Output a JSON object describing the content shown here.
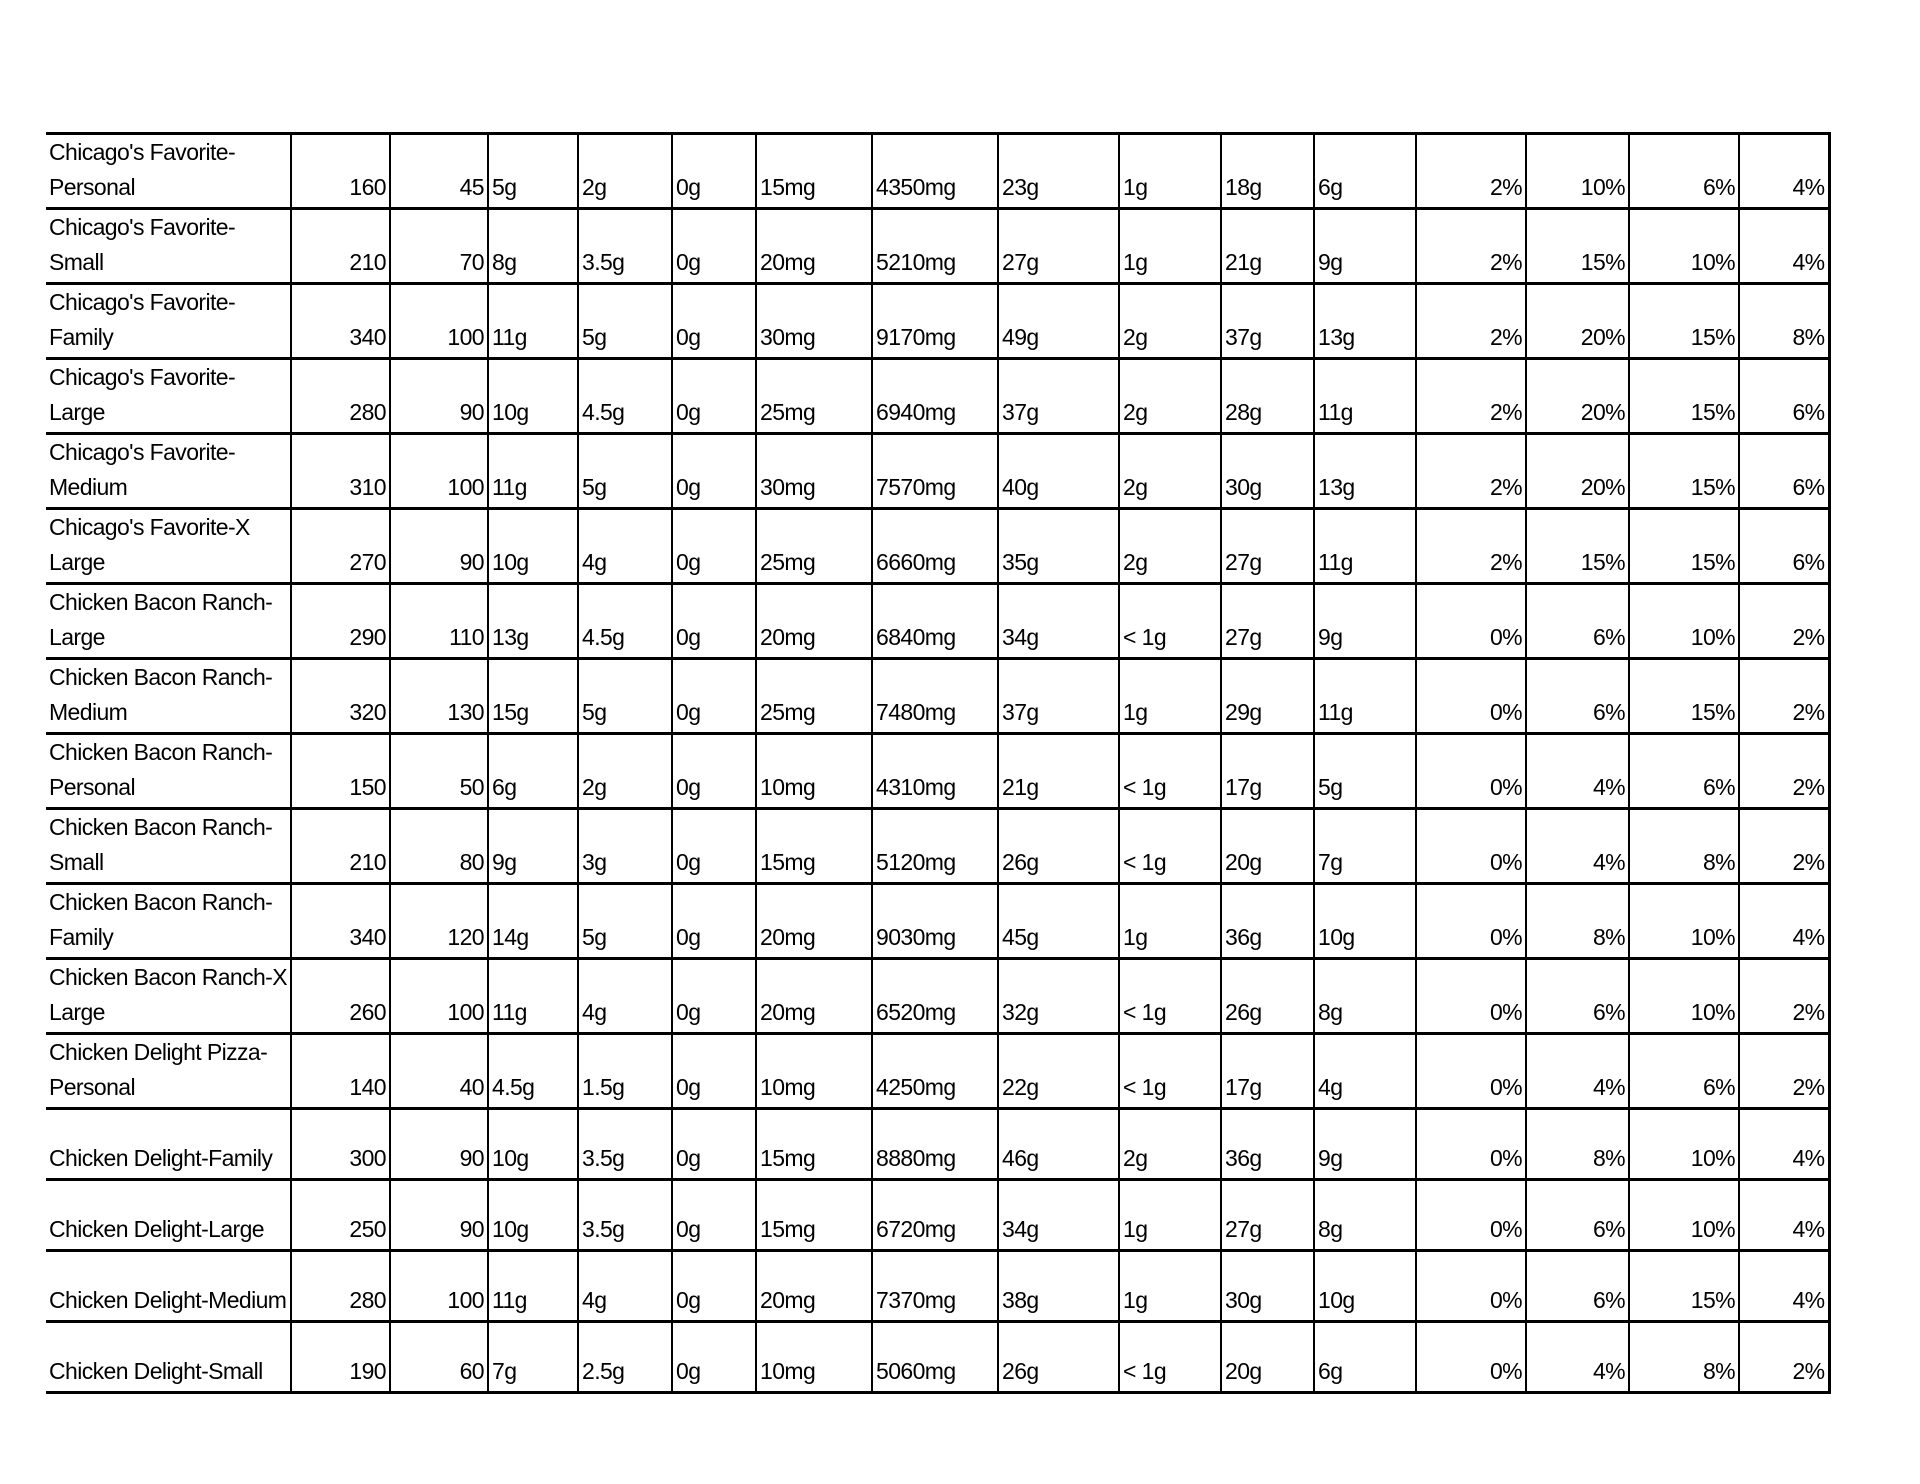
{
  "table": {
    "rows": [
      [
        "Chicago's Favorite-Personal",
        "160",
        "45",
        "5g",
        "2g",
        "0g",
        "15mg",
        "4350mg",
        "23g",
        "1g",
        "18g",
        "6g",
        "2%",
        "10%",
        "6%",
        "4%"
      ],
      [
        "Chicago's Favorite-Small",
        "210",
        "70",
        "8g",
        "3.5g",
        "0g",
        "20mg",
        "5210mg",
        "27g",
        "1g",
        "21g",
        "9g",
        "2%",
        "15%",
        "10%",
        "4%"
      ],
      [
        "Chicago's Favorite-Family",
        "340",
        "100",
        "11g",
        "5g",
        "0g",
        "30mg",
        "9170mg",
        "49g",
        "2g",
        "37g",
        "13g",
        "2%",
        "20%",
        "15%",
        "8%"
      ],
      [
        "Chicago's Favorite-Large",
        "280",
        "90",
        "10g",
        "4.5g",
        "0g",
        "25mg",
        "6940mg",
        "37g",
        "2g",
        "28g",
        "11g",
        "2%",
        "20%",
        "15%",
        "6%"
      ],
      [
        "Chicago's Favorite-Medium",
        "310",
        "100",
        "11g",
        "5g",
        "0g",
        "30mg",
        "7570mg",
        "40g",
        "2g",
        "30g",
        "13g",
        "2%",
        "20%",
        "15%",
        "6%"
      ],
      [
        "Chicago's Favorite-X Large",
        "270",
        "90",
        "10g",
        "4g",
        "0g",
        "25mg",
        "6660mg",
        "35g",
        "2g",
        "27g",
        "11g",
        "2%",
        "15%",
        "15%",
        "6%"
      ],
      [
        "Chicken Bacon Ranch-Large",
        "290",
        "110",
        "13g",
        "4.5g",
        "0g",
        "20mg",
        "6840mg",
        "34g",
        "< 1g",
        "27g",
        "9g",
        "0%",
        "6%",
        "10%",
        "2%"
      ],
      [
        "Chicken Bacon Ranch-Medium",
        "320",
        "130",
        "15g",
        "5g",
        "0g",
        "25mg",
        "7480mg",
        "37g",
        "1g",
        "29g",
        "11g",
        "0%",
        "6%",
        "15%",
        "2%"
      ],
      [
        "Chicken Bacon Ranch-Personal",
        "150",
        "50",
        "6g",
        "2g",
        "0g",
        "10mg",
        "4310mg",
        "21g",
        "< 1g",
        "17g",
        "5g",
        "0%",
        "4%",
        "6%",
        "2%"
      ],
      [
        "Chicken Bacon Ranch-Small",
        "210",
        "80",
        "9g",
        "3g",
        "0g",
        "15mg",
        "5120mg",
        "26g",
        "< 1g",
        "20g",
        "7g",
        "0%",
        "4%",
        "8%",
        "2%"
      ],
      [
        "Chicken Bacon Ranch-Family",
        "340",
        "120",
        "14g",
        "5g",
        "0g",
        "20mg",
        "9030mg",
        "45g",
        "1g",
        "36g",
        "10g",
        "0%",
        "8%",
        "10%",
        "4%"
      ],
      [
        "Chicken Bacon Ranch-X Large",
        "260",
        "100",
        "11g",
        "4g",
        "0g",
        "20mg",
        "6520mg",
        "32g",
        "< 1g",
        "26g",
        "8g",
        "0%",
        "6%",
        "10%",
        "2%"
      ],
      [
        "Chicken Delight Pizza-Personal",
        "140",
        "40",
        "4.5g",
        "1.5g",
        "0g",
        "10mg",
        "4250mg",
        "22g",
        "< 1g",
        "17g",
        "4g",
        "0%",
        "4%",
        "6%",
        "2%"
      ],
      [
        "Chicken Delight-Family",
        "300",
        "90",
        "10g",
        "3.5g",
        "0g",
        "15mg",
        "8880mg",
        "46g",
        "2g",
        "36g",
        "9g",
        "0%",
        "8%",
        "10%",
        "4%"
      ],
      [
        "Chicken Delight-Large",
        "250",
        "90",
        "10g",
        "3.5g",
        "0g",
        "15mg",
        "6720mg",
        "34g",
        "1g",
        "27g",
        "8g",
        "0%",
        "6%",
        "10%",
        "4%"
      ],
      [
        "Chicken Delight-Medium",
        "280",
        "100",
        "11g",
        "4g",
        "0g",
        "20mg",
        "7370mg",
        "38g",
        "1g",
        "30g",
        "10g",
        "0%",
        "6%",
        "15%",
        "4%"
      ],
      [
        "Chicken Delight-Small",
        "190",
        "60",
        "7g",
        "2.5g",
        "0g",
        "10mg",
        "5060mg",
        "26g",
        "< 1g",
        "20g",
        "6g",
        "0%",
        "4%",
        "8%",
        "2%"
      ]
    ]
  }
}
